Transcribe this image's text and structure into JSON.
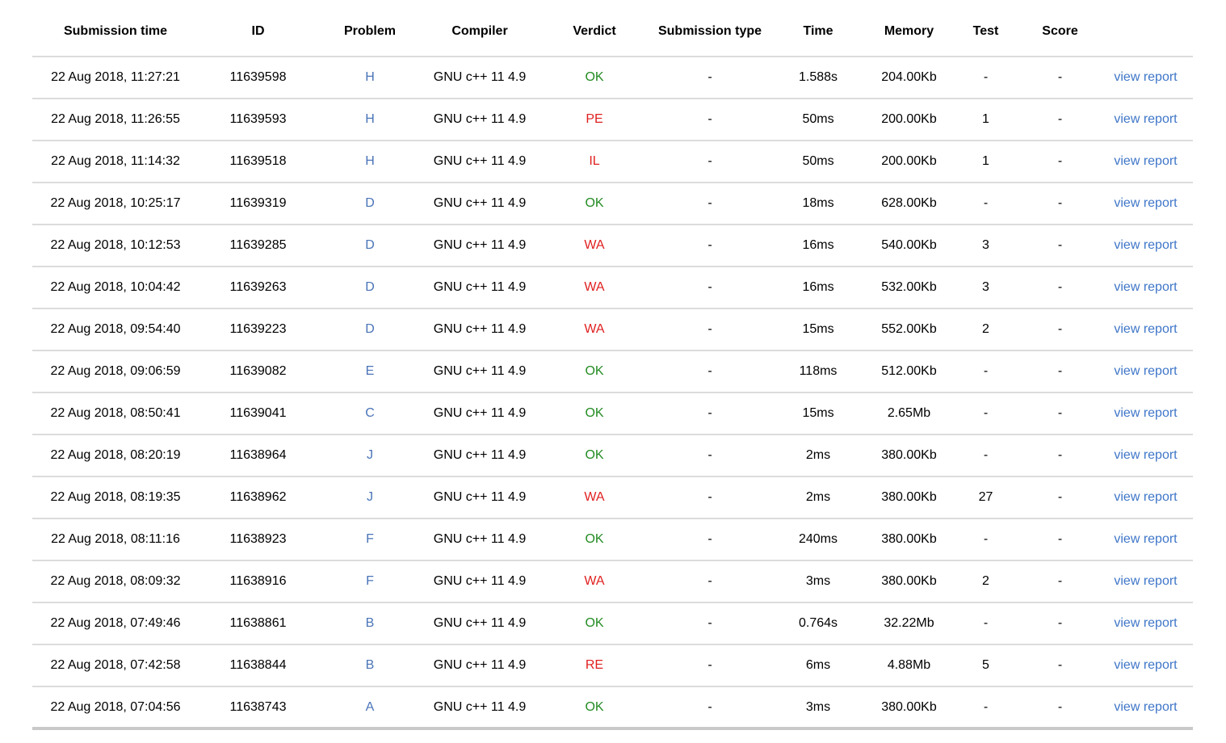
{
  "colors": {
    "problem_link": "#4a74b8",
    "report_link": "#3f76c8",
    "verdict_ok": "#228b22",
    "verdict_error": "#e01f1f",
    "row_separator": "#dcdcdc",
    "table_bottom_border": "#c9c9c9"
  },
  "table": {
    "headers": {
      "submission_time": "Submission time",
      "id": "ID",
      "problem": "Problem",
      "compiler": "Compiler",
      "verdict": "Verdict",
      "submission_type": "Submission type",
      "time": "Time",
      "memory": "Memory",
      "test": "Test",
      "score": "Score",
      "report": ""
    },
    "rows": [
      {
        "submission_time": "22 Aug 2018, 11:27:21",
        "id": "11639598",
        "problem": "H",
        "compiler": "GNU c++ 11 4.9",
        "verdict": "OK",
        "status": "ok",
        "submission_type": "-",
        "time": "1.588s",
        "memory": "204.00Kb",
        "test": "-",
        "score": "-",
        "report": "view report"
      },
      {
        "submission_time": "22 Aug 2018, 11:26:55",
        "id": "11639593",
        "problem": "H",
        "compiler": "GNU c++ 11 4.9",
        "verdict": "PE",
        "status": "error",
        "submission_type": "-",
        "time": "50ms",
        "memory": "200.00Kb",
        "test": "1",
        "score": "-",
        "report": "view report"
      },
      {
        "submission_time": "22 Aug 2018, 11:14:32",
        "id": "11639518",
        "problem": "H",
        "compiler": "GNU c++ 11 4.9",
        "verdict": "IL",
        "status": "error",
        "submission_type": "-",
        "time": "50ms",
        "memory": "200.00Kb",
        "test": "1",
        "score": "-",
        "report": "view report"
      },
      {
        "submission_time": "22 Aug 2018, 10:25:17",
        "id": "11639319",
        "problem": "D",
        "compiler": "GNU c++ 11 4.9",
        "verdict": "OK",
        "status": "ok",
        "submission_type": "-",
        "time": "18ms",
        "memory": "628.00Kb",
        "test": "-",
        "score": "-",
        "report": "view report"
      },
      {
        "submission_time": "22 Aug 2018, 10:12:53",
        "id": "11639285",
        "problem": "D",
        "compiler": "GNU c++ 11 4.9",
        "verdict": "WA",
        "status": "error",
        "submission_type": "-",
        "time": "16ms",
        "memory": "540.00Kb",
        "test": "3",
        "score": "-",
        "report": "view report"
      },
      {
        "submission_time": "22 Aug 2018, 10:04:42",
        "id": "11639263",
        "problem": "D",
        "compiler": "GNU c++ 11 4.9",
        "verdict": "WA",
        "status": "error",
        "submission_type": "-",
        "time": "16ms",
        "memory": "532.00Kb",
        "test": "3",
        "score": "-",
        "report": "view report"
      },
      {
        "submission_time": "22 Aug 2018, 09:54:40",
        "id": "11639223",
        "problem": "D",
        "compiler": "GNU c++ 11 4.9",
        "verdict": "WA",
        "status": "error",
        "submission_type": "-",
        "time": "15ms",
        "memory": "552.00Kb",
        "test": "2",
        "score": "-",
        "report": "view report"
      },
      {
        "submission_time": "22 Aug 2018, 09:06:59",
        "id": "11639082",
        "problem": "E",
        "compiler": "GNU c++ 11 4.9",
        "verdict": "OK",
        "status": "ok",
        "submission_type": "-",
        "time": "118ms",
        "memory": "512.00Kb",
        "test": "-",
        "score": "-",
        "report": "view report"
      },
      {
        "submission_time": "22 Aug 2018, 08:50:41",
        "id": "11639041",
        "problem": "C",
        "compiler": "GNU c++ 11 4.9",
        "verdict": "OK",
        "status": "ok",
        "submission_type": "-",
        "time": "15ms",
        "memory": "2.65Mb",
        "test": "-",
        "score": "-",
        "report": "view report"
      },
      {
        "submission_time": "22 Aug 2018, 08:20:19",
        "id": "11638964",
        "problem": "J",
        "compiler": "GNU c++ 11 4.9",
        "verdict": "OK",
        "status": "ok",
        "submission_type": "-",
        "time": "2ms",
        "memory": "380.00Kb",
        "test": "-",
        "score": "-",
        "report": "view report"
      },
      {
        "submission_time": "22 Aug 2018, 08:19:35",
        "id": "11638962",
        "problem": "J",
        "compiler": "GNU c++ 11 4.9",
        "verdict": "WA",
        "status": "error",
        "submission_type": "-",
        "time": "2ms",
        "memory": "380.00Kb",
        "test": "27",
        "score": "-",
        "report": "view report"
      },
      {
        "submission_time": "22 Aug 2018, 08:11:16",
        "id": "11638923",
        "problem": "F",
        "compiler": "GNU c++ 11 4.9",
        "verdict": "OK",
        "status": "ok",
        "submission_type": "-",
        "time": "240ms",
        "memory": "380.00Kb",
        "test": "-",
        "score": "-",
        "report": "view report"
      },
      {
        "submission_time": "22 Aug 2018, 08:09:32",
        "id": "11638916",
        "problem": "F",
        "compiler": "GNU c++ 11 4.9",
        "verdict": "WA",
        "status": "error",
        "submission_type": "-",
        "time": "3ms",
        "memory": "380.00Kb",
        "test": "2",
        "score": "-",
        "report": "view report"
      },
      {
        "submission_time": "22 Aug 2018, 07:49:46",
        "id": "11638861",
        "problem": "B",
        "compiler": "GNU c++ 11 4.9",
        "verdict": "OK",
        "status": "ok",
        "submission_type": "-",
        "time": "0.764s",
        "memory": "32.22Mb",
        "test": "-",
        "score": "-",
        "report": "view report"
      },
      {
        "submission_time": "22 Aug 2018, 07:42:58",
        "id": "11638844",
        "problem": "B",
        "compiler": "GNU c++ 11 4.9",
        "verdict": "RE",
        "status": "error",
        "submission_type": "-",
        "time": "6ms",
        "memory": "4.88Mb",
        "test": "5",
        "score": "-",
        "report": "view report"
      },
      {
        "submission_time": "22 Aug 2018, 07:04:56",
        "id": "11638743",
        "problem": "A",
        "compiler": "GNU c++ 11 4.9",
        "verdict": "OK",
        "status": "ok",
        "submission_type": "-",
        "time": "3ms",
        "memory": "380.00Kb",
        "test": "-",
        "score": "-",
        "report": "view report"
      }
    ]
  }
}
